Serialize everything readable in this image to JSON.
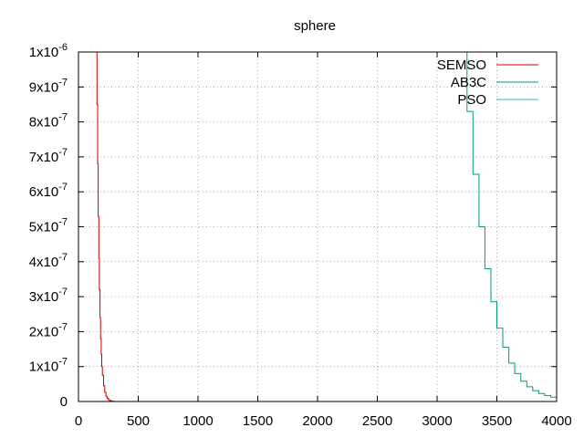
{
  "chart_data": {
    "type": "line",
    "title": "sphere",
    "xlabel": "",
    "ylabel": "",
    "xlim": [
      0,
      4000
    ],
    "ylim": [
      0,
      1e-06
    ],
    "grid": true,
    "legend_position": "top-right",
    "x_ticks": [
      0,
      500,
      1000,
      1500,
      2000,
      2500,
      3000,
      3500,
      4000
    ],
    "x_tick_labels": [
      "0",
      "500",
      "1000",
      "1500",
      "2000",
      "2500",
      "3000",
      "3500",
      "4000"
    ],
    "y_ticks": [
      0,
      1e-07,
      2e-07,
      3e-07,
      4e-07,
      5e-07,
      6e-07,
      7e-07,
      8e-07,
      9e-07,
      1e-06
    ],
    "y_tick_labels": [
      {
        "mantissa": "0",
        "exp": ""
      },
      {
        "mantissa": "1x10",
        "exp": "-7"
      },
      {
        "mantissa": "2x10",
        "exp": "-7"
      },
      {
        "mantissa": "3x10",
        "exp": "-7"
      },
      {
        "mantissa": "4x10",
        "exp": "-7"
      },
      {
        "mantissa": "5x10",
        "exp": "-7"
      },
      {
        "mantissa": "6x10",
        "exp": "-7"
      },
      {
        "mantissa": "7x10",
        "exp": "-7"
      },
      {
        "mantissa": "8x10",
        "exp": "-7"
      },
      {
        "mantissa": "9x10",
        "exp": "-7"
      },
      {
        "mantissa": "1x10",
        "exp": "-6"
      }
    ],
    "series": [
      {
        "name": "SEMSO",
        "color": "#cc0000",
        "x": [
          150,
          155,
          160,
          165,
          170,
          175,
          180,
          185,
          190,
          195,
          200,
          210,
          220,
          230,
          240,
          250,
          260,
          270,
          280,
          300
        ],
        "y": [
          1e-06,
          8.5e-07,
          6.8e-07,
          5.3e-07,
          4.1e-07,
          3.2e-07,
          2.4e-07,
          1.8e-07,
          1.35e-07,
          1e-07,
          7.5e-08,
          4.5e-08,
          2.6e-08,
          1.5e-08,
          9e-09,
          5e-09,
          3e-09,
          1.5e-09,
          8e-10,
          0
        ]
      },
      {
        "name": "AB3C",
        "color": "#00a060",
        "x": [
          3210,
          3250,
          3300,
          3350,
          3400,
          3450,
          3500,
          3550,
          3600,
          3650,
          3700,
          3750,
          3800,
          3850,
          3900,
          3950,
          4000
        ],
        "y": [
          1e-06,
          8.3e-07,
          6.5e-07,
          5e-07,
          3.8e-07,
          2.85e-07,
          2.1e-07,
          1.55e-07,
          1.1e-07,
          8e-08,
          5.8e-08,
          4.2e-08,
          3.1e-08,
          2.3e-08,
          1.7e-08,
          1.25e-08,
          9e-09
        ]
      },
      {
        "name": "PSO",
        "color": "#40b0c8",
        "x": [],
        "y": []
      }
    ]
  }
}
